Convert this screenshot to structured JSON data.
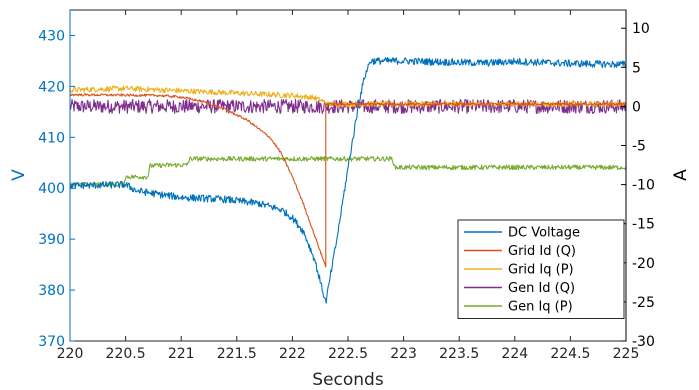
{
  "chart_data": {
    "type": "line",
    "xlabel": "Seconds",
    "ylabel_left": "V",
    "ylabel_right": "A",
    "xlim": [
      220,
      225
    ],
    "ylim_left": [
      370,
      435
    ],
    "ylim_right": [
      -30,
      12.33
    ],
    "x_ticks": [
      "220",
      "220.5",
      "221",
      "221.5",
      "222",
      "222.5",
      "223",
      "223.5",
      "224",
      "224.5",
      "225"
    ],
    "y_left_ticks": [
      "370",
      "380",
      "390",
      "400",
      "410",
      "420",
      "430"
    ],
    "y_right_ticks": [
      "-30",
      "-25",
      "-20",
      "-15",
      "-10",
      "-5",
      "0",
      "5",
      "10"
    ],
    "grid": false,
    "legend_position": "bottom-right",
    "colors": {
      "left_axis": "#0072BD",
      "right_axis": "#000000"
    },
    "series": [
      {
        "name": "DC Voltage",
        "axis": "left",
        "color": "#0072BD",
        "noise": 0.7,
        "x": [
          220,
          220.5,
          220.6,
          220.8,
          221.0,
          221.4,
          221.7,
          221.9,
          222.0,
          222.1,
          222.2,
          222.3,
          222.4,
          222.5,
          222.6,
          222.65,
          222.7,
          223.0,
          223.5,
          223.75,
          224.0,
          224.5,
          225
        ],
        "y": [
          400.5,
          400.7,
          399.5,
          398.8,
          398.2,
          397.8,
          397.0,
          395.8,
          394.2,
          391.5,
          386.0,
          377.5,
          390.0,
          404.0,
          417.0,
          422.0,
          425.0,
          425.0,
          424.7,
          424.6,
          424.9,
          424.5,
          424.3
        ]
      },
      {
        "name": "Grid Id (Q)",
        "axis": "right",
        "color": "#D95319",
        "noise": 0.15,
        "x": [
          220,
          220.8,
          221.0,
          221.2,
          221.4,
          221.6,
          221.8,
          221.9,
          222.0,
          222.1,
          222.2,
          222.3,
          222.3,
          225
        ],
        "y": [
          1.5,
          1.4,
          1.2,
          0.6,
          -0.4,
          -1.8,
          -4.0,
          -6.0,
          -9.0,
          -12.5,
          -16.5,
          -20.5,
          0.3,
          0.3
        ]
      },
      {
        "name": "Grid Iq (P)",
        "axis": "right",
        "color": "#EDB120",
        "noise": 0.35,
        "x": [
          220,
          220.5,
          221.0,
          221.5,
          222.0,
          222.2,
          222.3,
          222.3,
          225
        ],
        "y": [
          2.1,
          2.3,
          2.0,
          1.7,
          1.4,
          1.1,
          0.5,
          0.3,
          0.3
        ]
      },
      {
        "name": "Gen Id (Q)",
        "axis": "right",
        "color": "#7E2F8E",
        "noise": 0.9,
        "x": [
          220,
          225
        ],
        "y": [
          0.0,
          0.0
        ]
      },
      {
        "name": "Gen Iq (P)",
        "axis": "right",
        "color": "#77AC30",
        "noise": 0.3,
        "x": [
          220,
          220.48,
          220.5,
          220.7,
          220.72,
          220.9,
          221.05,
          221.08,
          222.0,
          222.9,
          222.92,
          225
        ],
        "y": [
          -10.0,
          -10.0,
          -9.0,
          -9.0,
          -7.6,
          -7.5,
          -7.5,
          -6.7,
          -6.7,
          -6.7,
          -7.8,
          -7.8
        ]
      }
    ]
  }
}
